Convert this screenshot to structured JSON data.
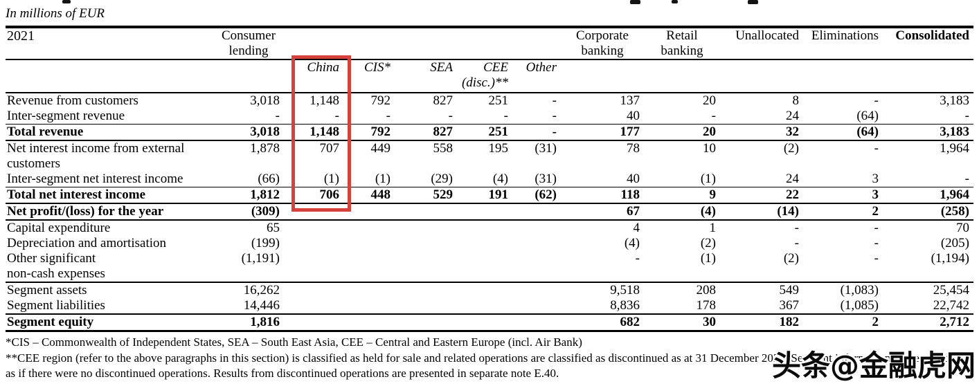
{
  "meta": {
    "unit_label": "In millions of EUR",
    "highlight": {
      "color": "#d5423b",
      "target": "china-column"
    },
    "watermark_text": "头条@金融虎网"
  },
  "table": {
    "column_ids": [
      "label",
      "consumer-lending",
      "china",
      "cis",
      "sea",
      "cee",
      "other",
      "corporate-banking",
      "retail-banking",
      "unallocated",
      "eliminations",
      "consolidated"
    ],
    "headers": {
      "year": "2021",
      "consumer_1": "Consumer",
      "consumer_2": "lending",
      "corporate_1": "Corporate",
      "corporate_2": "banking",
      "retail_1": "Retail",
      "retail_2": "banking",
      "unallocated": "Unallocated",
      "eliminations": "Eliminations",
      "consolidated": "Consolidated"
    },
    "sub_headers": {
      "china": "China",
      "cis": "CIS*",
      "sea": "SEA",
      "cee_1": "CEE",
      "cee_2": "(disc.)**",
      "other": "Other"
    },
    "rows": [
      {
        "label_lines": [
          "Revenue from customers"
        ],
        "bold": false,
        "rule_above": "",
        "rule_below": "",
        "values": [
          "3,018",
          "1,148",
          "792",
          "827",
          "251",
          "-",
          "137",
          "20",
          "8",
          "-",
          "3,183"
        ]
      },
      {
        "label_lines": [
          "Inter-segment revenue"
        ],
        "bold": false,
        "rule_above": "",
        "rule_below": "",
        "values": [
          "-",
          "-",
          "-",
          "-",
          "-",
          "-",
          "40",
          "-",
          "24",
          "(64)",
          "-"
        ]
      },
      {
        "label_lines": [
          "Total revenue"
        ],
        "bold": true,
        "rule_above": "thin",
        "rule_below": "med",
        "values": [
          "3,018",
          "1,148",
          "792",
          "827",
          "251",
          "-",
          "177",
          "20",
          "32",
          "(64)",
          "3,183"
        ]
      },
      {
        "label_lines": [
          "Net interest income from external",
          "customers"
        ],
        "bold": false,
        "rule_above": "",
        "rule_below": "",
        "values": [
          "1,878",
          "707",
          "449",
          "558",
          "195",
          "(31)",
          "78",
          "10",
          "(2)",
          "-",
          "1,964"
        ]
      },
      {
        "label_lines": [
          "Inter-segment net interest income"
        ],
        "bold": false,
        "rule_above": "",
        "rule_below": "",
        "values": [
          "(66)",
          "(1)",
          "(1)",
          "(29)",
          "(4)",
          "(31)",
          "40",
          "(1)",
          "24",
          "3",
          "-"
        ]
      },
      {
        "label_lines": [
          "Total net interest income"
        ],
        "bold": true,
        "rule_above": "thin",
        "rule_below": "strong",
        "values": [
          "1,812",
          "706",
          "448",
          "529",
          "191",
          "(62)",
          "118",
          "9",
          "22",
          "3",
          "1,964"
        ]
      },
      {
        "label_lines": [
          "Net profit/(loss) for the year"
        ],
        "bold": true,
        "rule_above": "",
        "rule_below": "med",
        "values": [
          "(309)",
          "",
          "",
          "",
          "",
          "",
          "67",
          "(4)",
          "(14)",
          "2",
          "(258)"
        ]
      },
      {
        "label_lines": [
          "Capital expenditure"
        ],
        "bold": false,
        "rule_above": "",
        "rule_below": "",
        "values": [
          "65",
          "",
          "",
          "",
          "",
          "",
          "4",
          "1",
          "-",
          "-",
          "70"
        ]
      },
      {
        "label_lines": [
          "Depreciation and amortisation"
        ],
        "bold": false,
        "rule_above": "",
        "rule_below": "",
        "values": [
          "(199)",
          "",
          "",
          "",
          "",
          "",
          "(4)",
          "(2)",
          "-",
          "-",
          "(205)"
        ]
      },
      {
        "label_lines": [
          "Other significant",
          "non-cash expenses"
        ],
        "bold": false,
        "rule_above": "",
        "rule_below": "",
        "values": [
          "(1,191)",
          "",
          "",
          "",
          "",
          "",
          "-",
          "(1)",
          "(2)",
          "-",
          "(1,194)"
        ]
      },
      {
        "label_lines": [
          "Segment assets"
        ],
        "bold": false,
        "rule_above": "med",
        "rule_below": "",
        "values": [
          "16,262",
          "",
          "",
          "",
          "",
          "",
          "9,518",
          "208",
          "549",
          "(1,083)",
          "25,454"
        ]
      },
      {
        "label_lines": [
          "Segment liabilities"
        ],
        "bold": false,
        "rule_above": "",
        "rule_below": "",
        "values": [
          "14,446",
          "",
          "",
          "",
          "",
          "",
          "8,836",
          "178",
          "367",
          "(1,085)",
          "22,742"
        ]
      },
      {
        "label_lines": [
          "Segment equity"
        ],
        "bold": true,
        "rule_above": "med",
        "rule_below": "",
        "values": [
          "1,816",
          "",
          "",
          "",
          "",
          "",
          "682",
          "30",
          "182",
          "2",
          "2,712"
        ]
      }
    ]
  },
  "footnotes": {
    "line1": "*CIS – Commonwealth of Independent States, SEA – South East Asia, CEE – Central and Eastern Europe (incl. Air Bank)",
    "line2": "**CEE region (refer to the above paragraphs in this section) is classified as held for sale and related operations are classified as discontinued as at 31 December 2021. Segment information is presented",
    "line3": "as if there were no discontinued operations. Results from discontinued operations are presented in separate note E.40."
  }
}
